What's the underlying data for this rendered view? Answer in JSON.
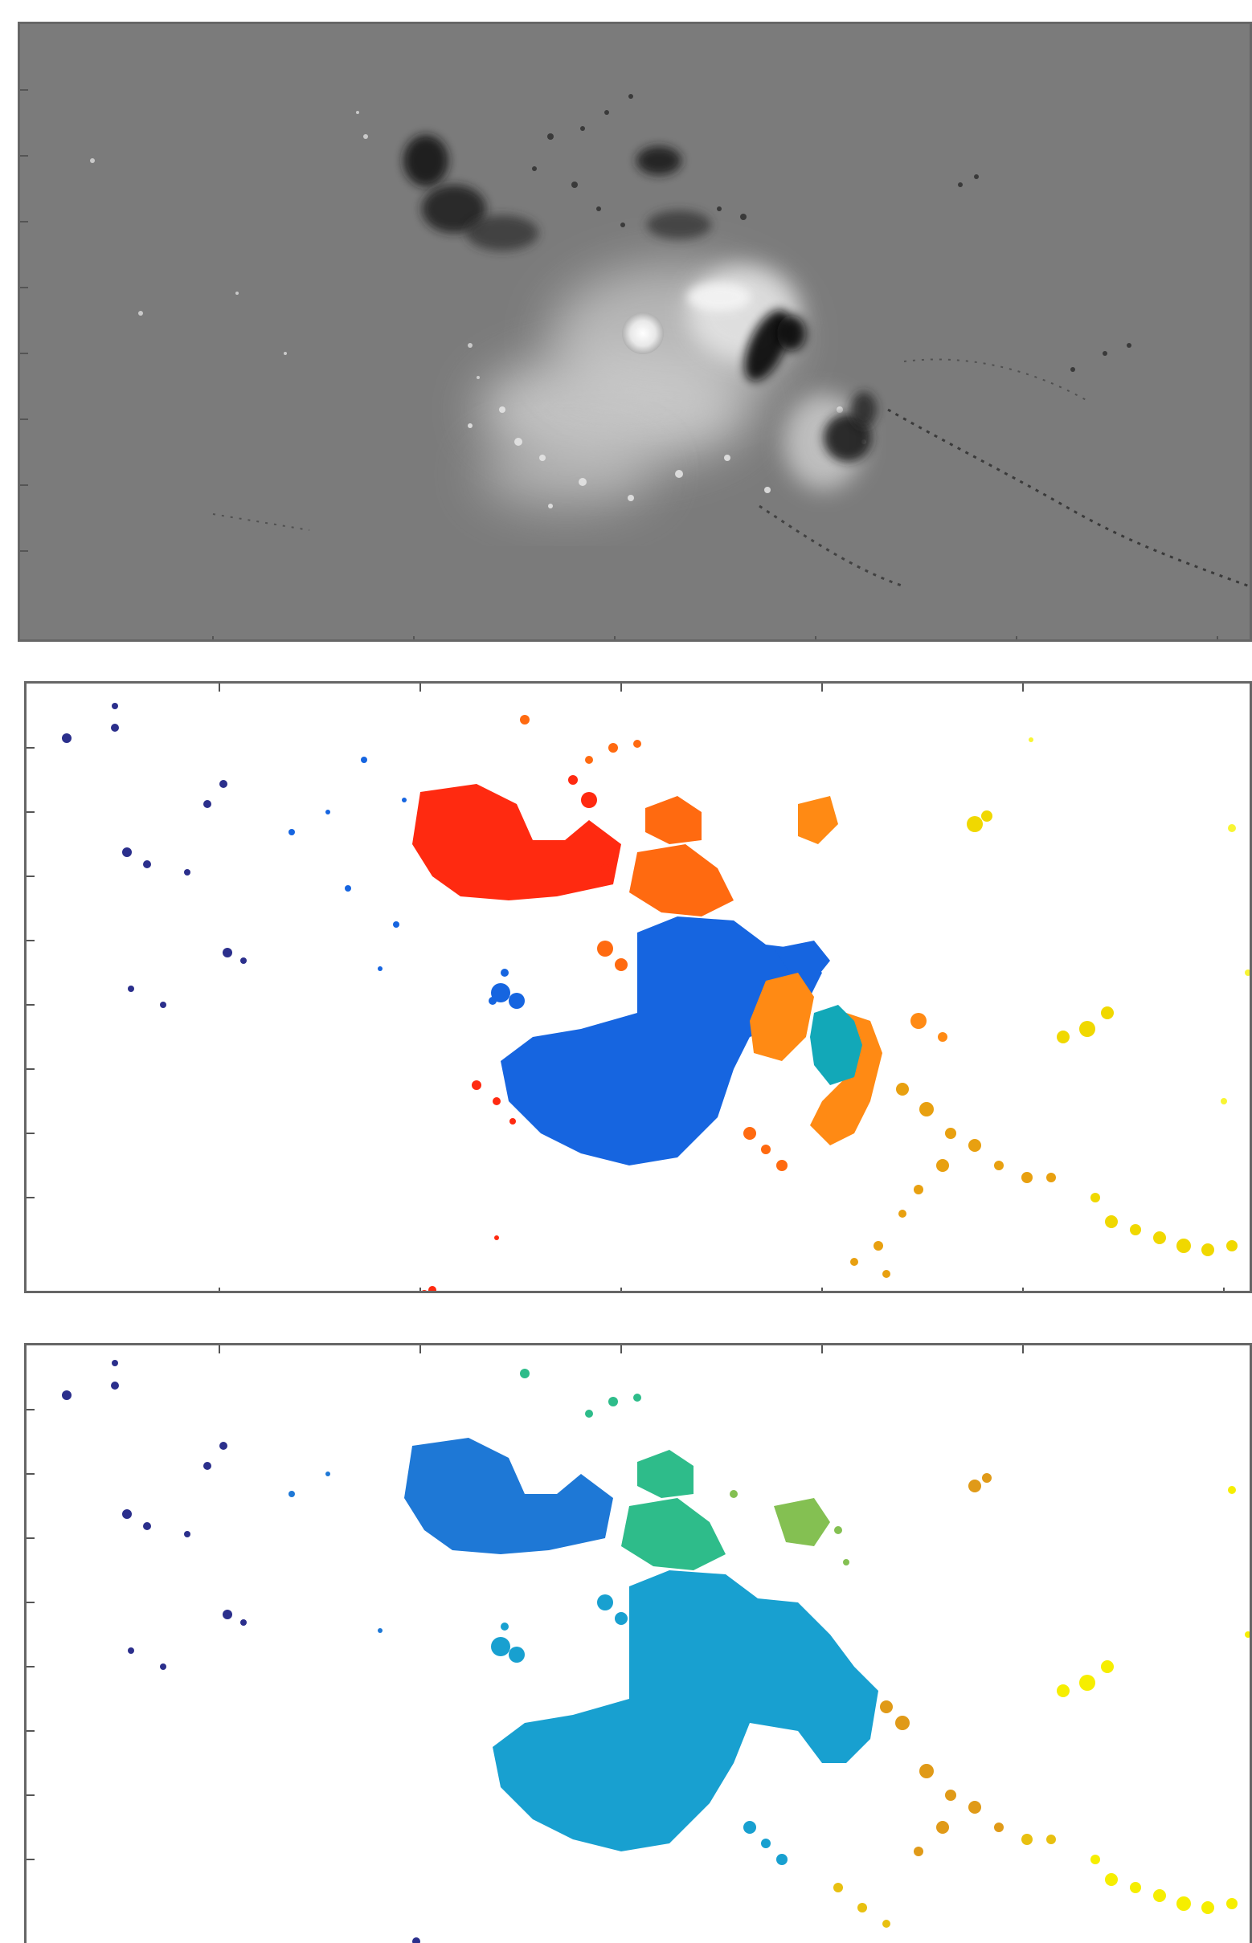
{
  "figure": {
    "panels": [
      {
        "id": "magnetogram",
        "kind": "grayscale-image",
        "palette": {
          "background": "#7b7b7b",
          "negative_polarity": "#1a1a1a",
          "positive_polarity": "#f2f2f2",
          "frame": "#666666"
        }
      },
      {
        "id": "segmentation-a",
        "kind": "segmentation-map",
        "palette": {
          "background": "#ffffff",
          "regions": [
            "#2b2f8c",
            "#1665e0",
            "#ff2a10",
            "#ff6a10",
            "#ff8a14",
            "#12a8b8",
            "#e8a010",
            "#f0d800",
            "#f6f200"
          ]
        }
      },
      {
        "id": "segmentation-b",
        "kind": "segmentation-map",
        "palette": {
          "background": "#ffffff",
          "regions": [
            "#2b2f8c",
            "#1e78d6",
            "#18a0d0",
            "#2ebc8a",
            "#84c052",
            "#e09a18",
            "#e8c010",
            "#f6ee00"
          ]
        }
      }
    ]
  }
}
